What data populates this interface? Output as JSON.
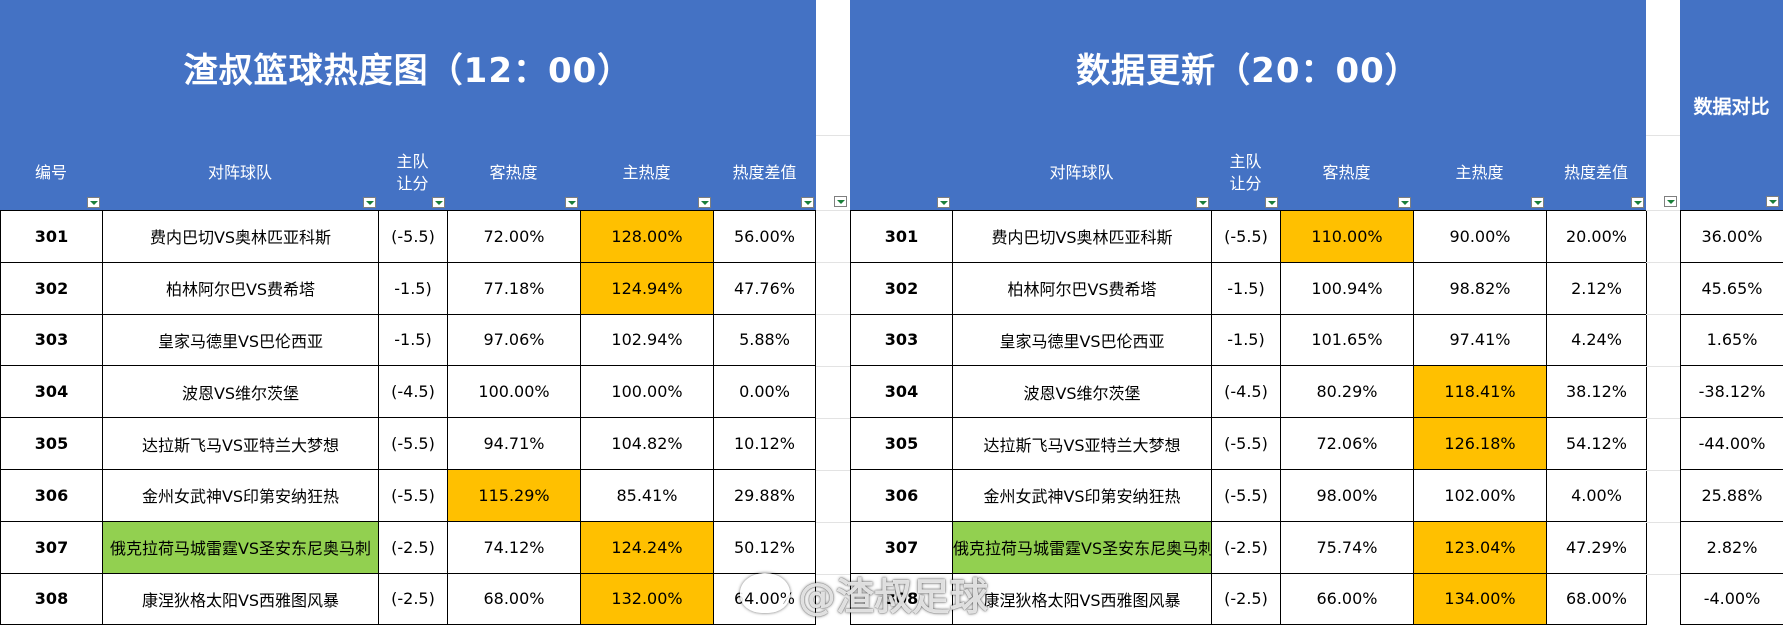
{
  "left": {
    "title": "渣叔篮球热度图（12：00）",
    "headers": {
      "id": "编号",
      "match": "对阵球队",
      "handicap_l1": "主队",
      "handicap_l2": "让分",
      "away_heat": "客热度",
      "home_heat": "主热度",
      "diff": "热度差值"
    },
    "rows": [
      {
        "id": "301",
        "match": "费内巴切VS奥林匹亚科斯",
        "handicap": "(-5.5)",
        "away": "72.00%",
        "home": "128.00%",
        "diff": "56.00%",
        "hl_away": false,
        "hl_home": true,
        "green": false
      },
      {
        "id": "302",
        "match": "柏林阿尔巴VS费希塔",
        "handicap": "-1.5)",
        "away": "77.18%",
        "home": "124.94%",
        "diff": "47.76%",
        "hl_away": false,
        "hl_home": true,
        "green": false
      },
      {
        "id": "303",
        "match": "皇家马德里VS巴伦西亚",
        "handicap": "-1.5)",
        "away": "97.06%",
        "home": "102.94%",
        "diff": "5.88%",
        "hl_away": false,
        "hl_home": false,
        "green": false
      },
      {
        "id": "304",
        "match": "波恩VS维尔茨堡",
        "handicap": "(-4.5)",
        "away": "100.00%",
        "home": "100.00%",
        "diff": "0.00%",
        "hl_away": false,
        "hl_home": false,
        "green": false
      },
      {
        "id": "305",
        "match": "达拉斯飞马VS亚特兰大梦想",
        "handicap": "(-5.5)",
        "away": "94.71%",
        "home": "104.82%",
        "diff": "10.12%",
        "hl_away": false,
        "hl_home": false,
        "green": false
      },
      {
        "id": "306",
        "match": "金州女武神VS印第安纳狂热",
        "handicap": "(-5.5)",
        "away": "115.29%",
        "home": "85.41%",
        "diff": "29.88%",
        "hl_away": true,
        "hl_home": false,
        "green": false
      },
      {
        "id": "307",
        "match": "俄克拉荷马城雷霆VS圣安东尼奥马刺",
        "handicap": "(-2.5)",
        "away": "74.12%",
        "home": "124.24%",
        "diff": "50.12%",
        "hl_away": false,
        "hl_home": true,
        "green": true
      },
      {
        "id": "308",
        "match": "康涅狄格太阳VS西雅图风暴",
        "handicap": "(-2.5)",
        "away": "68.00%",
        "home": "132.00%",
        "diff": "64.00%",
        "hl_away": false,
        "hl_home": true,
        "green": false
      }
    ]
  },
  "right": {
    "title": "数据更新（20：00）",
    "headers": {
      "match": "对阵球队",
      "handicap_l1": "主队",
      "handicap_l2": "让分",
      "away_heat": "客热度",
      "home_heat": "主热度",
      "diff": "热度差值"
    },
    "rows": [
      {
        "id": "301",
        "match": "费内巴切VS奥林匹亚科斯",
        "handicap": "(-5.5)",
        "away": "110.00%",
        "home": "90.00%",
        "diff": "20.00%",
        "hl_away": true,
        "hl_home": false,
        "green": false
      },
      {
        "id": "302",
        "match": "柏林阿尔巴VS费希塔",
        "handicap": "-1.5)",
        "away": "100.94%",
        "home": "98.82%",
        "diff": "2.12%",
        "hl_away": false,
        "hl_home": false,
        "green": false
      },
      {
        "id": "303",
        "match": "皇家马德里VS巴伦西亚",
        "handicap": "-1.5)",
        "away": "101.65%",
        "home": "97.41%",
        "diff": "4.24%",
        "hl_away": false,
        "hl_home": false,
        "green": false
      },
      {
        "id": "304",
        "match": "波恩VS维尔茨堡",
        "handicap": "(-4.5)",
        "away": "80.29%",
        "home": "118.41%",
        "diff": "38.12%",
        "hl_away": false,
        "hl_home": true,
        "green": false
      },
      {
        "id": "305",
        "match": "达拉斯飞马VS亚特兰大梦想",
        "handicap": "(-5.5)",
        "away": "72.06%",
        "home": "126.18%",
        "diff": "54.12%",
        "hl_away": false,
        "hl_home": true,
        "green": false
      },
      {
        "id": "306",
        "match": "金州女武神VS印第安纳狂热",
        "handicap": "(-5.5)",
        "away": "98.00%",
        "home": "102.00%",
        "diff": "4.00%",
        "hl_away": false,
        "hl_home": false,
        "green": false
      },
      {
        "id": "307",
        "match": "俄克拉荷马城雷霆VS圣安东尼奥马刺",
        "handicap": "(-2.5)",
        "away": "75.74%",
        "home": "123.04%",
        "diff": "47.29%",
        "hl_away": false,
        "hl_home": true,
        "green": true
      },
      {
        "id": "308",
        "match": "康涅狄格太阳VS西雅图风暴",
        "handicap": "(-2.5)",
        "away": "66.00%",
        "home": "134.00%",
        "diff": "68.00%",
        "hl_away": false,
        "hl_home": true,
        "green": false
      }
    ]
  },
  "compare": {
    "title": "数据对比",
    "rows": [
      "36.00%",
      "45.65%",
      "1.65%",
      "-38.12%",
      "-44.00%",
      "25.88%",
      "2.82%",
      "-4.00%"
    ]
  },
  "watermark": "@渣叔足球",
  "colors": {
    "header_blue": "#4472C4",
    "highlight": "#FFC000",
    "green": "#92D050"
  }
}
